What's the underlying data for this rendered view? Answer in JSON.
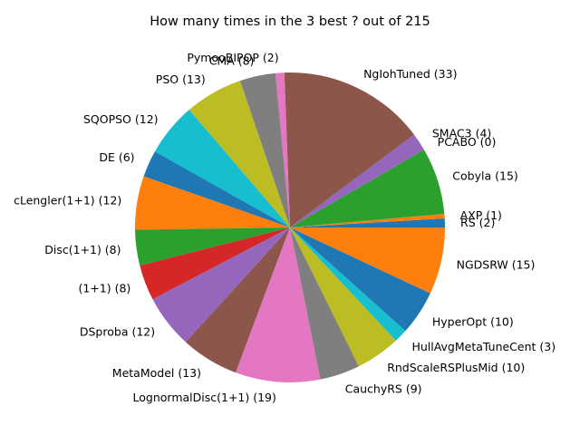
{
  "chart_data": {
    "type": "pie",
    "title": "How many times in the 3 best ? out of 215",
    "start_angle_deg": 0,
    "direction": "counterclockwise",
    "slices": [
      {
        "label": "RS (2)",
        "value": 2,
        "color": "#1f77b4"
      },
      {
        "label": "AXP (1)",
        "value": 1,
        "color": "#ff7f0e"
      },
      {
        "label": "Cobyla (15)",
        "value": 15,
        "color": "#2ca02c"
      },
      {
        "label": "PCABO (0)",
        "value": 0,
        "color": "#d62728"
      },
      {
        "label": "SMAC3 (4)",
        "value": 4,
        "color": "#9467bd"
      },
      {
        "label": "NgIohTuned (33)",
        "value": 33,
        "color": "#8c564b"
      },
      {
        "label": "PymooBIPOP (2)",
        "value": 2,
        "color": "#e377c2"
      },
      {
        "label": "CMA (8)",
        "value": 8,
        "color": "#7f7f7f"
      },
      {
        "label": "PSO (13)",
        "value": 13,
        "color": "#bcbd22"
      },
      {
        "label": "SQOPSO (12)",
        "value": 12,
        "color": "#17becf"
      },
      {
        "label": "DE (6)",
        "value": 6,
        "color": "#1f77b4"
      },
      {
        "label": "DiscreteLenglerOnePlusOne (12)",
        "display": "cLengler(1+1) (12)",
        "value": 12,
        "color": "#ff7f0e"
      },
      {
        "label": "Disc(1+1) (8)",
        "value": 8,
        "color": "#2ca02c"
      },
      {
        "label": "(1+1) (8)",
        "value": 8,
        "color": "#d62728"
      },
      {
        "label": "DSproba (12)",
        "value": 12,
        "color": "#9467bd"
      },
      {
        "label": "MetaModel (13)",
        "value": 13,
        "color": "#8c564b"
      },
      {
        "label": "LognormalDisc(1+1) (19)",
        "value": 19,
        "color": "#e377c2"
      },
      {
        "label": "CauchyRS (9)",
        "value": 9,
        "color": "#7f7f7f"
      },
      {
        "label": "RndScaleRSPlusMid (10)",
        "value": 10,
        "color": "#bcbd22"
      },
      {
        "label": "HullAvgMetaTuneCent (3)",
        "value": 3,
        "color": "#17becf"
      },
      {
        "label": "HyperOpt (10)",
        "value": 10,
        "color": "#1f77b4"
      },
      {
        "label": "NGDSRW (15)",
        "value": 15,
        "color": "#ff7f0e"
      }
    ]
  }
}
